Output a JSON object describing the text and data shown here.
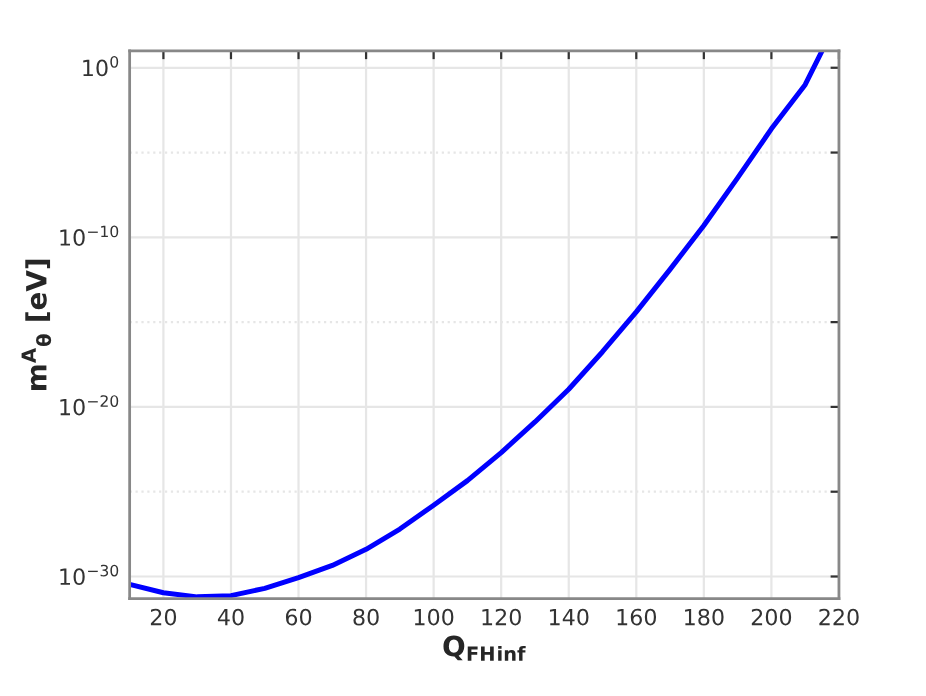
{
  "chart_data": {
    "type": "line",
    "xlabel": "Q$_{FH}$$_{inf}$",
    "ylabel": "m$^{A}$$_{θ}$ [eV]",
    "log": "y",
    "grid": true,
    "line_style": "solid",
    "xlim": [
      10,
      220
    ],
    "ylim": [
      5e-32,
      10
    ],
    "xticks": [
      20,
      40,
      60,
      80,
      100,
      120,
      140,
      160,
      180,
      200,
      220
    ],
    "yticks": [
      {
        "value": 1e-30,
        "label": "10$^{−30}$"
      },
      {
        "value": 1e-25,
        "label": null
      },
      {
        "value": 1e-20,
        "label": "10$^{−20}$"
      },
      {
        "value": 1e-15,
        "label": null
      },
      {
        "value": 1e-10,
        "label": "10$^{−10}$"
      },
      {
        "value": 1e-05,
        "label": null
      },
      {
        "value": 1,
        "label": "10$^{0}$"
      }
    ],
    "x": [
      10,
      20,
      30,
      40,
      50,
      60,
      70,
      80,
      90,
      100,
      110,
      120,
      130,
      140,
      150,
      160,
      170,
      180,
      190,
      200,
      210,
      215
    ],
    "series": [
      {
        "color": "#0000ff",
        "values": [
          3.4e-31,
          1.1e-31,
          6.3e-32,
          7.4e-32,
          2e-31,
          8.5e-31,
          4.5e-30,
          4e-29,
          6.3e-28,
          1.6e-26,
          4.5e-25,
          2e-23,
          1.3e-21,
          1.1e-19,
          1.8e-17,
          4e-15,
          1.3e-12,
          5e-10,
          3.2e-07,
          0.00025,
          0.1,
          10
        ]
      }
    ]
  }
}
